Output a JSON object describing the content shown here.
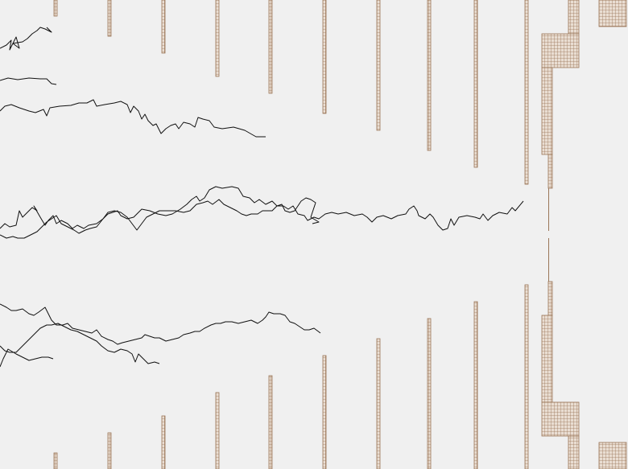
{
  "colors": {
    "background": "#f0f0f0",
    "grid_fill": "#e9ddd2",
    "grid_stroke": "#9a7658",
    "trace": "#111111",
    "needle": "#9a7658"
  },
  "columns_top": [
    {
      "id": "c1"
    },
    {
      "id": "c2"
    },
    {
      "id": "c3"
    },
    {
      "id": "c4"
    },
    {
      "id": "c5"
    },
    {
      "id": "c6"
    },
    {
      "id": "c7"
    },
    {
      "id": "c8"
    },
    {
      "id": "c9"
    },
    {
      "id": "c10"
    }
  ],
  "columns_bottom": [
    {
      "id": "c1"
    },
    {
      "id": "c2"
    },
    {
      "id": "c3"
    },
    {
      "id": "c4"
    },
    {
      "id": "c5"
    },
    {
      "id": "c6"
    },
    {
      "id": "c7"
    },
    {
      "id": "c8"
    },
    {
      "id": "c9"
    },
    {
      "id": "c10"
    }
  ],
  "traces": [
    {
      "id": "trace-top-scribble"
    },
    {
      "id": "trace-top-short"
    },
    {
      "id": "trace-upper-long"
    },
    {
      "id": "trace-middle-a"
    },
    {
      "id": "trace-middle-b"
    },
    {
      "id": "trace-lower-a"
    },
    {
      "id": "trace-lower-b"
    },
    {
      "id": "trace-lower-c"
    }
  ]
}
